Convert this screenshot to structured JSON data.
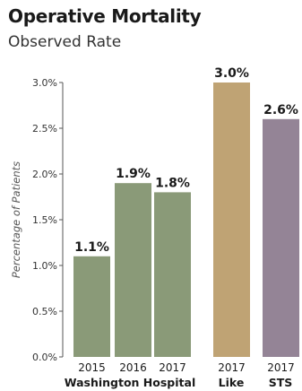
{
  "header": {
    "title": "Operative Mortality",
    "subtitle": "Observed Rate"
  },
  "chart_data": {
    "type": "bar",
    "title": "Operative Mortality",
    "subtitle": "Observed Rate",
    "ylabel": "Percentage of Patients",
    "xlabel": "",
    "ylim": [
      0,
      3.0
    ],
    "yticks": [
      "0.0%",
      "0.5%",
      "1.0%",
      "1.5%",
      "2.0%",
      "2.5%",
      "3.0%"
    ],
    "grid": false,
    "groups": [
      {
        "name": "Washington Hospital",
        "color": "#8a9a78",
        "bars": [
          {
            "category": "2015",
            "value": 1.1,
            "label": "1.1%"
          },
          {
            "category": "2016",
            "value": 1.9,
            "label": "1.9%"
          },
          {
            "category": "2017",
            "value": 1.8,
            "label": "1.8%"
          }
        ]
      },
      {
        "name": "Like",
        "color": "#bfa374",
        "bars": [
          {
            "category": "2017",
            "value": 3.0,
            "label": "3.0%"
          }
        ]
      },
      {
        "name": "STS",
        "color": "#948496",
        "bars": [
          {
            "category": "2017",
            "value": 2.6,
            "label": "2.6%"
          }
        ]
      }
    ]
  }
}
